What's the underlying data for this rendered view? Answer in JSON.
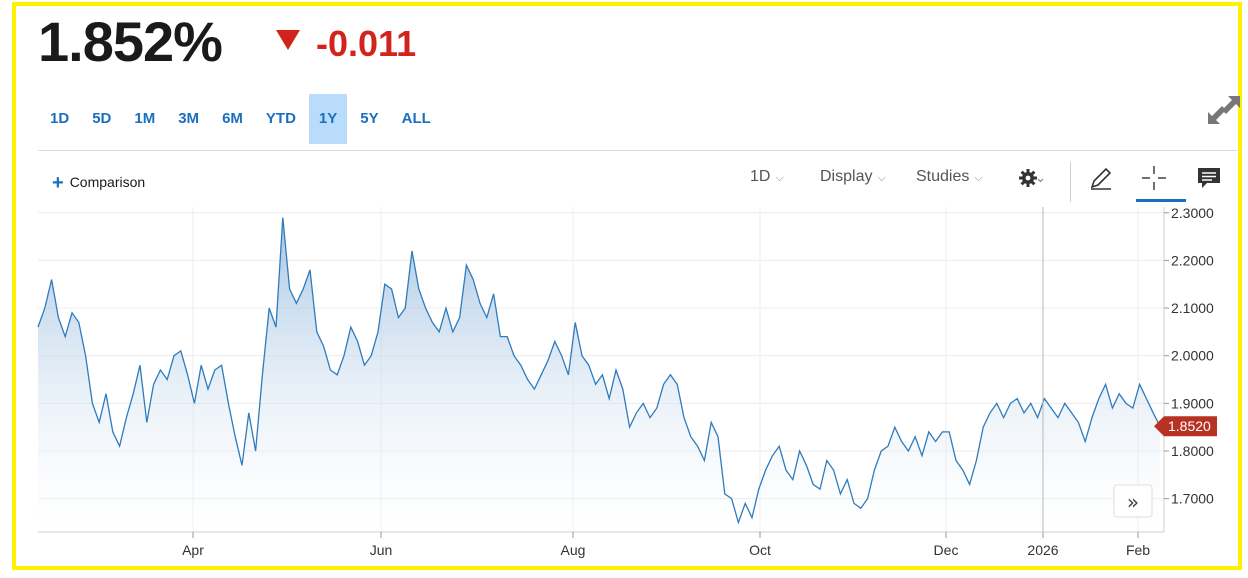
{
  "header": {
    "price": "1.852%",
    "change": "-0.011"
  },
  "ranges": [
    "1D",
    "5D",
    "1M",
    "3M",
    "6M",
    "YTD",
    "1Y",
    "5Y",
    "ALL"
  ],
  "active_range": "1Y",
  "toolbar": {
    "comparison_label": "Comparison",
    "interval_label": "1D",
    "display_label": "Display",
    "studies_label": "Studies"
  },
  "colors": {
    "accent": "#1a6fc0",
    "down": "#d2231c",
    "line": "#2e7bbd",
    "last_price_tag": "#b83223",
    "highlight_border": "#fff200"
  },
  "icons": [
    "expand-icon",
    "gear-icon",
    "pencil-icon",
    "crosshair-icon",
    "comment-icon",
    "fast-forward-icon"
  ],
  "chart_data": {
    "type": "area",
    "title": "",
    "xlabel": "",
    "ylabel": "",
    "ylim": [
      1.63,
      2.31
    ],
    "y_ticks": [
      "2.3000",
      "2.2000",
      "2.1000",
      "2.0000",
      "1.9000",
      "1.8000",
      "1.7000"
    ],
    "x_ticks": [
      "Apr",
      "Jun",
      "Aug",
      "Oct",
      "Dec",
      "2026",
      "Feb"
    ],
    "last_value": "1.8520",
    "series": [
      {
        "values": [
          2.06,
          2.1,
          2.16,
          2.08,
          2.04,
          2.09,
          2.07,
          2.0,
          1.9,
          1.86,
          1.92,
          1.84,
          1.81,
          1.87,
          1.92,
          1.98,
          1.86,
          1.94,
          1.97,
          1.95,
          2.0,
          2.01,
          1.96,
          1.9,
          1.98,
          1.93,
          1.97,
          1.98,
          1.9,
          1.83,
          1.77,
          1.88,
          1.8,
          1.96,
          2.1,
          2.06,
          2.29,
          2.14,
          2.11,
          2.14,
          2.18,
          2.05,
          2.02,
          1.97,
          1.96,
          2.0,
          2.06,
          2.03,
          1.98,
          2.0,
          2.05,
          2.15,
          2.14,
          2.08,
          2.1,
          2.22,
          2.14,
          2.1,
          2.07,
          2.05,
          2.1,
          2.05,
          2.08,
          2.19,
          2.16,
          2.11,
          2.08,
          2.13,
          2.04,
          2.04,
          2.0,
          1.98,
          1.95,
          1.93,
          1.96,
          1.99,
          2.03,
          2.0,
          1.96,
          2.07,
          2.0,
          1.98,
          1.94,
          1.96,
          1.91,
          1.97,
          1.93,
          1.85,
          1.88,
          1.9,
          1.87,
          1.89,
          1.94,
          1.96,
          1.94,
          1.87,
          1.83,
          1.81,
          1.78,
          1.86,
          1.83,
          1.71,
          1.7,
          1.65,
          1.69,
          1.66,
          1.72,
          1.76,
          1.79,
          1.81,
          1.76,
          1.74,
          1.8,
          1.77,
          1.73,
          1.72,
          1.78,
          1.76,
          1.71,
          1.74,
          1.69,
          1.68,
          1.7,
          1.76,
          1.8,
          1.81,
          1.85,
          1.82,
          1.8,
          1.83,
          1.79,
          1.84,
          1.82,
          1.84,
          1.84,
          1.78,
          1.76,
          1.73,
          1.78,
          1.85,
          1.88,
          1.9,
          1.87,
          1.9,
          1.91,
          1.88,
          1.9,
          1.87,
          1.91,
          1.89,
          1.87,
          1.9,
          1.88,
          1.86,
          1.82,
          1.87,
          1.91,
          1.94,
          1.89,
          1.92,
          1.9,
          1.89,
          1.94,
          1.91,
          1.88,
          1.852
        ]
      }
    ]
  }
}
